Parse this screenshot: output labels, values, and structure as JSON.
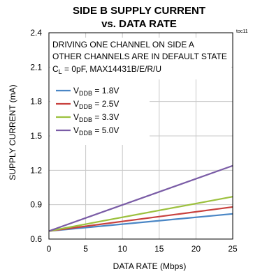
{
  "chart_data": {
    "type": "line",
    "title": "SIDE B SUPPLY CURRENT",
    "subtitle": "vs. DATA RATE",
    "figure_id": "toc11",
    "xlabel": "DATA RATE (Mbps)",
    "ylabel": "SUPPLY CURRENT (mA)",
    "xlim": [
      0,
      25
    ],
    "ylim": [
      0.6,
      2.4
    ],
    "xticks": [
      "0",
      "5",
      "10",
      "15",
      "20",
      "25"
    ],
    "yticks": [
      "0.6",
      "0.9",
      "1.2",
      "1.5",
      "1.8",
      "2.1",
      "2.4"
    ],
    "grid": true,
    "annotations": [
      "DRIVING ONE CHANNEL ON SIDE A",
      "OTHER CHANNELS ARE IN DEFAULT STATE",
      "C",
      "L",
      " = 0pF, MAX14431B/E/R/U"
    ],
    "legend_position": "top-left",
    "series": [
      {
        "name": "V",
        "sub": "DDB",
        "suffix": " = 1.8V",
        "color": "#4a86c5",
        "x": [
          0,
          25
        ],
        "y": [
          0.67,
          0.82
        ]
      },
      {
        "name": "V",
        "sub": "DDB",
        "suffix": " = 2.5V",
        "color": "#c8413e",
        "x": [
          0,
          25
        ],
        "y": [
          0.67,
          0.88
        ]
      },
      {
        "name": "V",
        "sub": "DDB",
        "suffix": " = 3.3V",
        "color": "#9cc13e",
        "x": [
          0,
          25
        ],
        "y": [
          0.67,
          0.97
        ]
      },
      {
        "name": "V",
        "sub": "DDB",
        "suffix": " = 5.0V",
        "color": "#7a5ca6",
        "x": [
          0,
          25
        ],
        "y": [
          0.67,
          1.24
        ]
      }
    ]
  }
}
